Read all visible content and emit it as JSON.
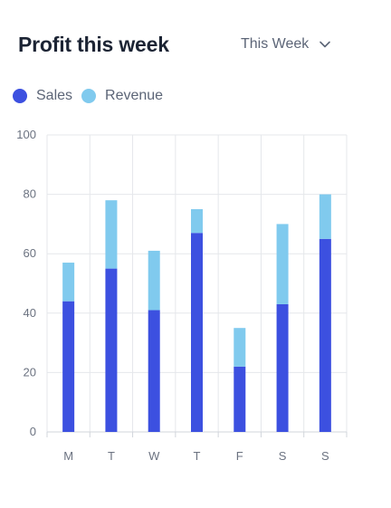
{
  "card": {
    "title": "Profit this week",
    "period": "This Week"
  },
  "colors": {
    "sales": "#3c50e0",
    "revenue": "#80caee",
    "grid": "#e5e7eb",
    "title": "#1c2434",
    "muted": "#5c6577"
  },
  "icons": {
    "period_dropdown": "chevron-down-icon"
  },
  "chart_data": {
    "type": "bar",
    "stacked": true,
    "title": "Profit this week",
    "categories": [
      "M",
      "T",
      "W",
      "T",
      "F",
      "S",
      "S"
    ],
    "series": [
      {
        "name": "Sales",
        "values": [
          44,
          55,
          41,
          67,
          22,
          43,
          65
        ]
      },
      {
        "name": "Revenue",
        "values": [
          13,
          23,
          20,
          8,
          13,
          27,
          15
        ]
      }
    ],
    "y_ticks": [
      0,
      20,
      40,
      60,
      80,
      100
    ],
    "ylim": [
      0,
      100
    ],
    "xlabel": "",
    "ylabel": "",
    "grid": true,
    "legend": "top-left"
  }
}
